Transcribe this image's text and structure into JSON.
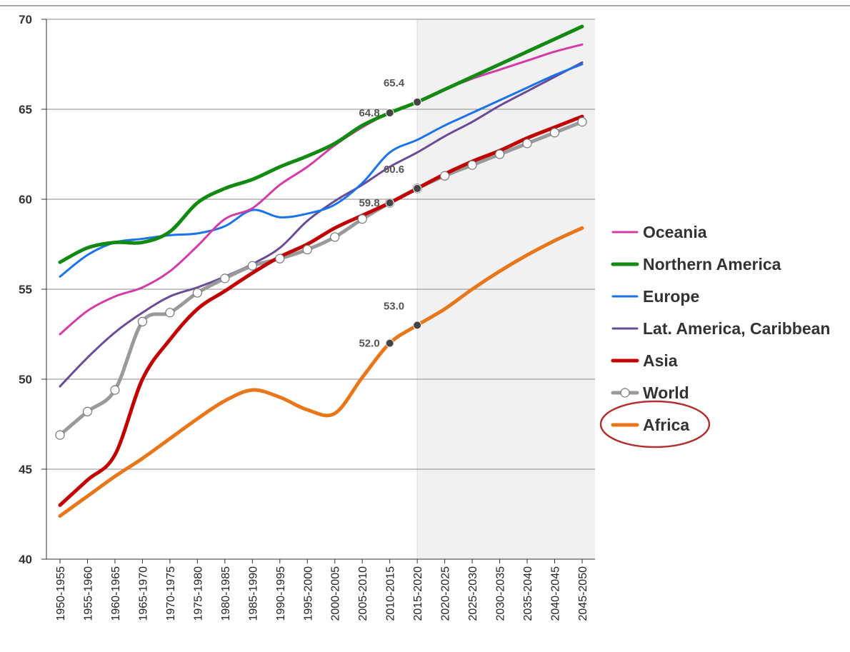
{
  "chart_data": {
    "type": "line",
    "categories": [
      "1950-1955",
      "1955-1960",
      "1960-1965",
      "1965-1970",
      "1970-1975",
      "1975-1980",
      "1980-1985",
      "1985-1990",
      "1990-1995",
      "1995-2000",
      "2000-2005",
      "2005-2010",
      "2010-2015",
      "2015-2020",
      "2020-2025",
      "2025-2030",
      "2030-2035",
      "2035-2040",
      "2040-2045",
      "2045-2050"
    ],
    "ylim": [
      40,
      70
    ],
    "yticks": [
      40,
      45,
      50,
      55,
      60,
      65,
      70
    ],
    "grid": true,
    "legend": "right",
    "series": [
      {
        "name": "Oceania",
        "color": "#d23ca6",
        "line_width": 3,
        "values": [
          52.5,
          53.8,
          54.6,
          55.1,
          56.0,
          57.4,
          58.9,
          59.5,
          60.8,
          61.8,
          63.0,
          64.0,
          64.8,
          65.4,
          66.1,
          66.7,
          67.2,
          67.7,
          68.2,
          68.6
        ]
      },
      {
        "name": "Northern America",
        "color": "#128a12",
        "line_width": 5,
        "values": [
          56.5,
          57.3,
          57.6,
          57.6,
          58.2,
          59.8,
          60.6,
          61.1,
          61.8,
          62.4,
          63.1,
          64.1,
          64.8,
          65.4,
          66.1,
          66.8,
          67.5,
          68.2,
          68.9,
          69.6
        ],
        "value_labels": [
          null,
          null,
          null,
          null,
          null,
          null,
          null,
          null,
          null,
          null,
          null,
          null,
          "64.8",
          "65.4",
          null,
          null,
          null,
          null,
          null,
          null
        ]
      },
      {
        "name": "Europe",
        "color": "#1a73e8",
        "line_width": 3,
        "values": [
          55.7,
          56.9,
          57.6,
          57.8,
          58.0,
          58.1,
          58.5,
          59.4,
          59.0,
          59.2,
          59.7,
          60.9,
          62.6,
          63.3,
          64.1,
          64.8,
          65.5,
          66.2,
          66.9,
          67.5
        ]
      },
      {
        "name": "Lat. America, Caribbean",
        "color": "#6a4c96",
        "line_width": 3,
        "values": [
          49.6,
          51.2,
          52.6,
          53.7,
          54.6,
          55.1,
          55.7,
          56.4,
          57.3,
          58.8,
          59.9,
          60.8,
          61.8,
          62.6,
          63.5,
          64.3,
          65.2,
          66.0,
          66.8,
          67.6
        ]
      },
      {
        "name": "Asia",
        "color": "#c00000",
        "line_width": 5,
        "values": [
          43.0,
          44.4,
          45.8,
          50.0,
          52.2,
          53.9,
          54.9,
          55.9,
          56.8,
          57.5,
          58.4,
          59.1,
          59.8,
          60.6,
          61.4,
          62.1,
          62.7,
          63.4,
          64.0,
          64.6
        ],
        "value_labels": [
          null,
          null,
          null,
          null,
          null,
          null,
          null,
          null,
          null,
          null,
          null,
          null,
          "59.8",
          "60.6",
          null,
          null,
          null,
          null,
          null,
          null
        ]
      },
      {
        "name": "World",
        "color": "#9a9a9a",
        "line_width": 5,
        "markers": true,
        "values": [
          46.9,
          48.2,
          49.4,
          53.2,
          53.7,
          54.8,
          55.6,
          56.3,
          56.7,
          57.2,
          57.9,
          58.9,
          59.8,
          60.6,
          61.3,
          61.9,
          62.5,
          63.1,
          63.7,
          64.3
        ]
      },
      {
        "name": "Africa",
        "color": "#e8761a",
        "line_width": 5,
        "values": [
          42.4,
          43.5,
          44.6,
          45.6,
          46.7,
          47.8,
          48.8,
          49.4,
          49.0,
          48.3,
          48.1,
          50.1,
          52.0,
          53.0,
          53.9,
          55.0,
          56.0,
          56.9,
          57.7,
          58.4
        ],
        "value_labels": [
          null,
          null,
          null,
          null,
          null,
          null,
          null,
          null,
          null,
          null,
          null,
          null,
          "52.0",
          "53.0",
          null,
          null,
          null,
          null,
          null,
          null
        ]
      }
    ]
  }
}
